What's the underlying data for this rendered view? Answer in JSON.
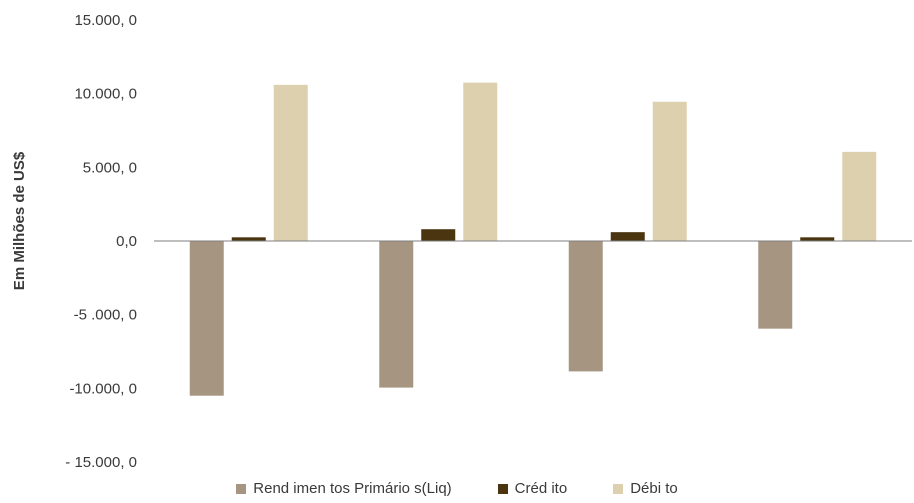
{
  "chart_data": {
    "type": "bar",
    "title": "",
    "xlabel": "",
    "ylabel": "Em Milhões de US$",
    "ylim": [
      -15000,
      15000
    ],
    "yticks": [
      15000,
      10000,
      5000,
      0,
      -5000,
      -10000,
      -15000
    ],
    "ytick_labels": [
      "15.000, 0",
      "10.000, 0",
      "5.000, 0",
      "0,0",
      "-5 .000, 0",
      "-10.000, 0",
      "- 15.000, 0"
    ],
    "categories": [
      "",
      "",
      "",
      ""
    ],
    "grid": false,
    "legend_position": "bottom",
    "series": [
      {
        "name": "Rend imen tos Primário s(Liq)",
        "color": "#a69580",
        "values": [
          -10500,
          -9950,
          -8850,
          -5950
        ]
      },
      {
        "name": "Créd ito",
        "color": "#4a3510",
        "values": [
          250,
          800,
          600,
          250
        ]
      },
      {
        "name": "Débi to",
        "color": "#ddd0ae",
        "values": [
          10600,
          10750,
          9450,
          6050
        ]
      }
    ]
  }
}
